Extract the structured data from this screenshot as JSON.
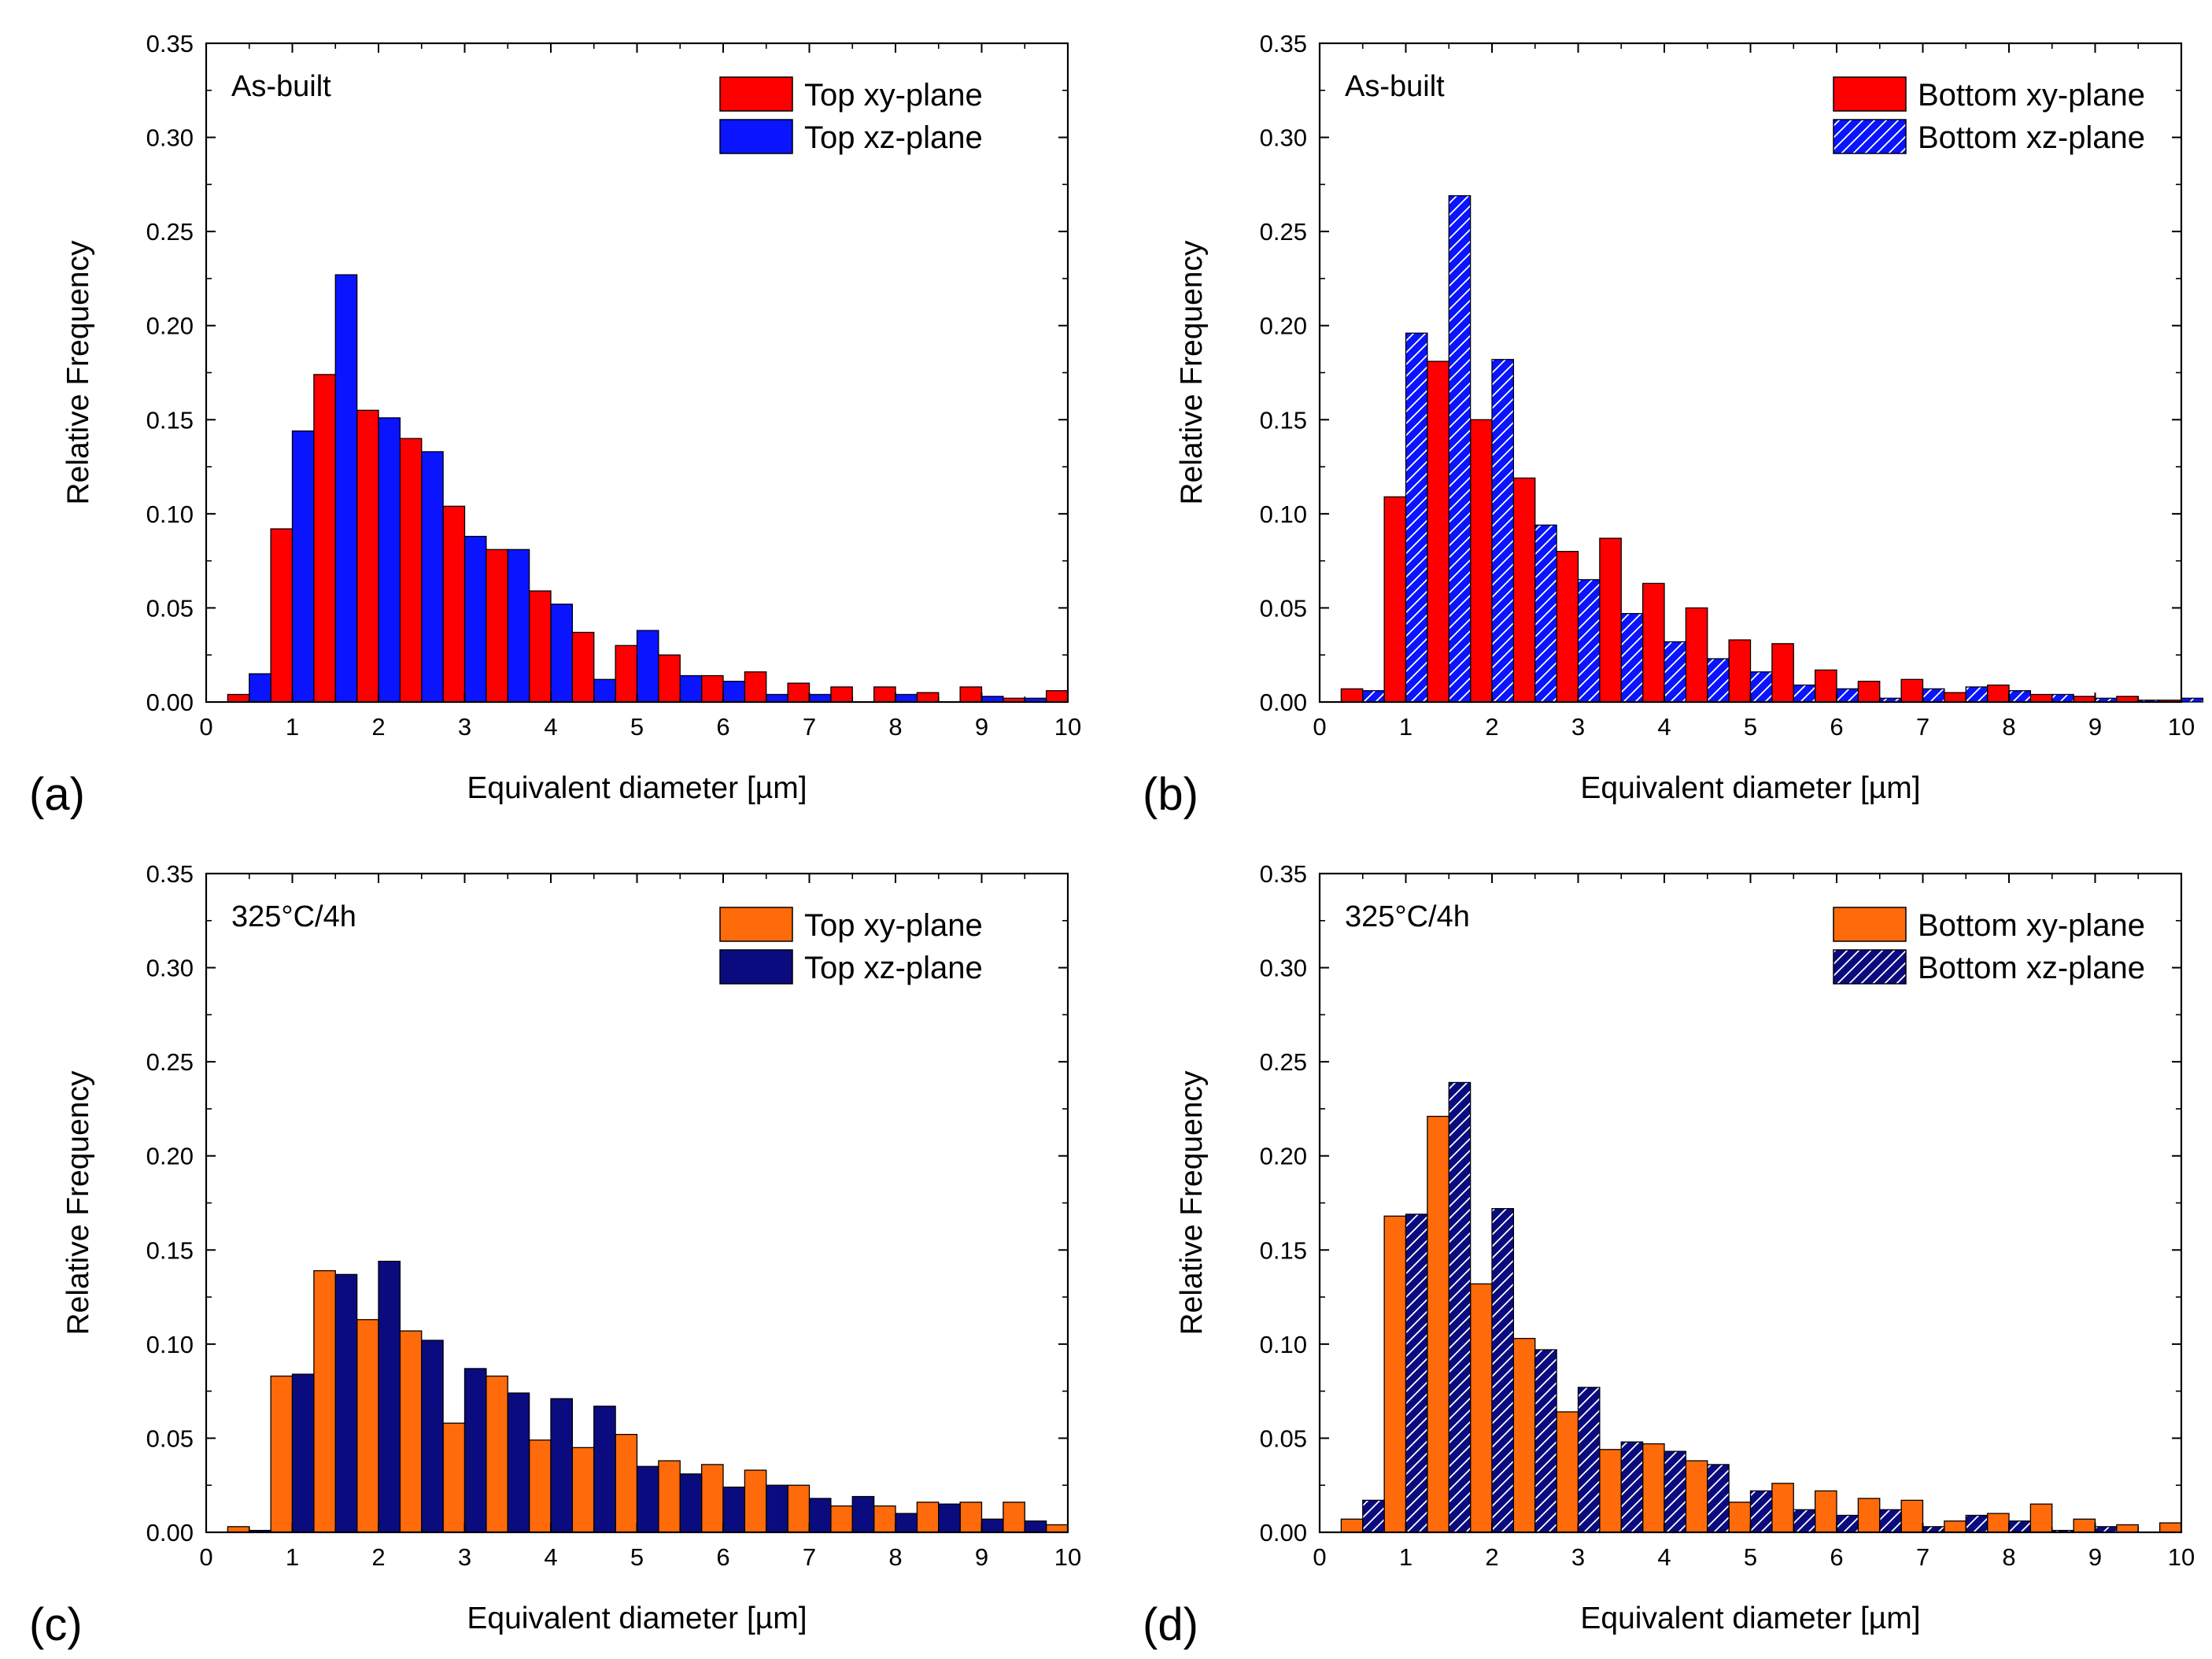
{
  "colors": {
    "red": "#ff0000",
    "blue": "#0a14ff",
    "orange": "#ff6a0a",
    "navy": "#0b0b80",
    "hatch": "#ffffff",
    "axis": "#000000"
  },
  "chart_data": [
    {
      "type": "bar",
      "panel": "(a)",
      "annotation": "As-built",
      "xlabel": "Equivalent diameter [µm]",
      "ylabel": "Relative Frequency",
      "xlim": [
        0,
        10
      ],
      "ylim": [
        0,
        0.35
      ],
      "xticks": [
        "0",
        "1",
        "2",
        "3",
        "4",
        "5",
        "6",
        "7",
        "8",
        "9",
        "10"
      ],
      "yticks": [
        "0.00",
        "0.05",
        "0.10",
        "0.15",
        "0.20",
        "0.25",
        "0.30",
        "0.35"
      ],
      "legend_position": "top-right",
      "bin_centers": [
        0.5,
        1.0,
        1.5,
        2.0,
        2.5,
        3.0,
        3.5,
        4.0,
        4.5,
        5.0,
        5.5,
        6.0,
        6.5,
        7.0,
        7.5,
        8.0,
        8.5,
        9.0,
        9.5,
        10.0
      ],
      "series": [
        {
          "name": "Top xy-plane",
          "color_key": "red",
          "hatched": false,
          "values": [
            0.004,
            0.092,
            0.174,
            0.155,
            0.14,
            0.104,
            0.081,
            0.059,
            0.037,
            0.03,
            0.025,
            0.014,
            0.016,
            0.01,
            0.008,
            0.008,
            0.005,
            0.008,
            0.002,
            0.006
          ]
        },
        {
          "name": "Top xz-plane",
          "color_key": "blue",
          "hatched": false,
          "values": [
            0.015,
            0.144,
            0.227,
            0.151,
            0.133,
            0.088,
            0.081,
            0.052,
            0.012,
            0.038,
            0.014,
            0.011,
            0.004,
            0.004,
            0.0,
            0.004,
            0.0,
            0.003,
            0.002,
            0.0
          ]
        }
      ]
    },
    {
      "type": "bar",
      "panel": "(b)",
      "annotation": "As-built",
      "xlabel": "Equivalent diameter [µm]",
      "ylabel": "Relative Frequency",
      "xlim": [
        0,
        10
      ],
      "ylim": [
        0,
        0.35
      ],
      "xticks": [
        "0",
        "1",
        "2",
        "3",
        "4",
        "5",
        "6",
        "7",
        "8",
        "9",
        "10"
      ],
      "yticks": [
        "0.00",
        "0.05",
        "0.10",
        "0.15",
        "0.20",
        "0.25",
        "0.30",
        "0.35"
      ],
      "legend_position": "top-right",
      "bin_centers": [
        0.5,
        1.0,
        1.5,
        2.0,
        2.5,
        3.0,
        3.5,
        4.0,
        4.5,
        5.0,
        5.5,
        6.0,
        6.5,
        7.0,
        7.5,
        8.0,
        8.5,
        9.0,
        9.5,
        10.0
      ],
      "series": [
        {
          "name": "Bottom xy-plane",
          "color_key": "red",
          "hatched": false,
          "values": [
            0.007,
            0.109,
            0.181,
            0.15,
            0.119,
            0.08,
            0.087,
            0.063,
            0.05,
            0.033,
            0.031,
            0.017,
            0.011,
            0.012,
            0.005,
            0.009,
            0.004,
            0.003,
            0.003,
            0.001
          ]
        },
        {
          "name": "Bottom xz-plane",
          "color_key": "blue",
          "hatched": true,
          "values": [
            0.006,
            0.196,
            0.269,
            0.182,
            0.094,
            0.065,
            0.047,
            0.032,
            0.023,
            0.016,
            0.009,
            0.007,
            0.002,
            0.007,
            0.008,
            0.006,
            0.004,
            0.002,
            0.001,
            0.002
          ]
        }
      ]
    },
    {
      "type": "bar",
      "panel": "(c)",
      "annotation": "325°C/4h",
      "xlabel": "Equivalent diameter [µm]",
      "ylabel": "Relative Frequency",
      "xlim": [
        0,
        10
      ],
      "ylim": [
        0,
        0.35
      ],
      "xticks": [
        "0",
        "1",
        "2",
        "3",
        "4",
        "5",
        "6",
        "7",
        "8",
        "9",
        "10"
      ],
      "yticks": [
        "0.00",
        "0.05",
        "0.10",
        "0.15",
        "0.20",
        "0.25",
        "0.30",
        "0.35"
      ],
      "legend_position": "top-right",
      "bin_centers": [
        0.5,
        1.0,
        1.5,
        2.0,
        2.5,
        3.0,
        3.5,
        4.0,
        4.5,
        5.0,
        5.5,
        6.0,
        6.5,
        7.0,
        7.5,
        8.0,
        8.5,
        9.0,
        9.5,
        10.0
      ],
      "series": [
        {
          "name": "Top xy-plane",
          "color_key": "orange",
          "hatched": false,
          "values": [
            0.003,
            0.083,
            0.139,
            0.113,
            0.107,
            0.058,
            0.083,
            0.049,
            0.045,
            0.052,
            0.038,
            0.036,
            0.033,
            0.025,
            0.014,
            0.014,
            0.016,
            0.016,
            0.016,
            0.004
          ]
        },
        {
          "name": "Top xz-plane",
          "color_key": "navy",
          "hatched": false,
          "values": [
            0.001,
            0.084,
            0.137,
            0.144,
            0.102,
            0.087,
            0.074,
            0.071,
            0.067,
            0.035,
            0.031,
            0.024,
            0.025,
            0.018,
            0.019,
            0.01,
            0.015,
            0.007,
            0.006,
            0.0
          ]
        }
      ]
    },
    {
      "type": "bar",
      "panel": "(d)",
      "annotation": "325°C/4h",
      "xlabel": "Equivalent diameter [µm]",
      "ylabel": "Relative Frequency",
      "xlim": [
        0,
        10
      ],
      "ylim": [
        0,
        0.35
      ],
      "xticks": [
        "0",
        "1",
        "2",
        "3",
        "4",
        "5",
        "6",
        "7",
        "8",
        "9",
        "10"
      ],
      "yticks": [
        "0.00",
        "0.05",
        "0.10",
        "0.15",
        "0.20",
        "0.25",
        "0.30",
        "0.35"
      ],
      "legend_position": "top-right",
      "bin_centers": [
        0.5,
        1.0,
        1.5,
        2.0,
        2.5,
        3.0,
        3.5,
        4.0,
        4.5,
        5.0,
        5.5,
        6.0,
        6.5,
        7.0,
        7.5,
        8.0,
        8.5,
        9.0,
        9.5,
        10.0
      ],
      "series": [
        {
          "name": "Bottom xy-plane",
          "color_key": "orange",
          "hatched": false,
          "values": [
            0.007,
            0.168,
            0.221,
            0.132,
            0.103,
            0.064,
            0.044,
            0.047,
            0.038,
            0.016,
            0.026,
            0.022,
            0.018,
            0.017,
            0.006,
            0.01,
            0.015,
            0.007,
            0.004,
            0.005
          ]
        },
        {
          "name": "Bottom xz-plane",
          "color_key": "navy",
          "hatched": true,
          "values": [
            0.017,
            0.169,
            0.239,
            0.172,
            0.097,
            0.077,
            0.048,
            0.043,
            0.036,
            0.022,
            0.012,
            0.009,
            0.012,
            0.003,
            0.009,
            0.006,
            0.001,
            0.003,
            0.0,
            0.0
          ]
        }
      ]
    }
  ]
}
